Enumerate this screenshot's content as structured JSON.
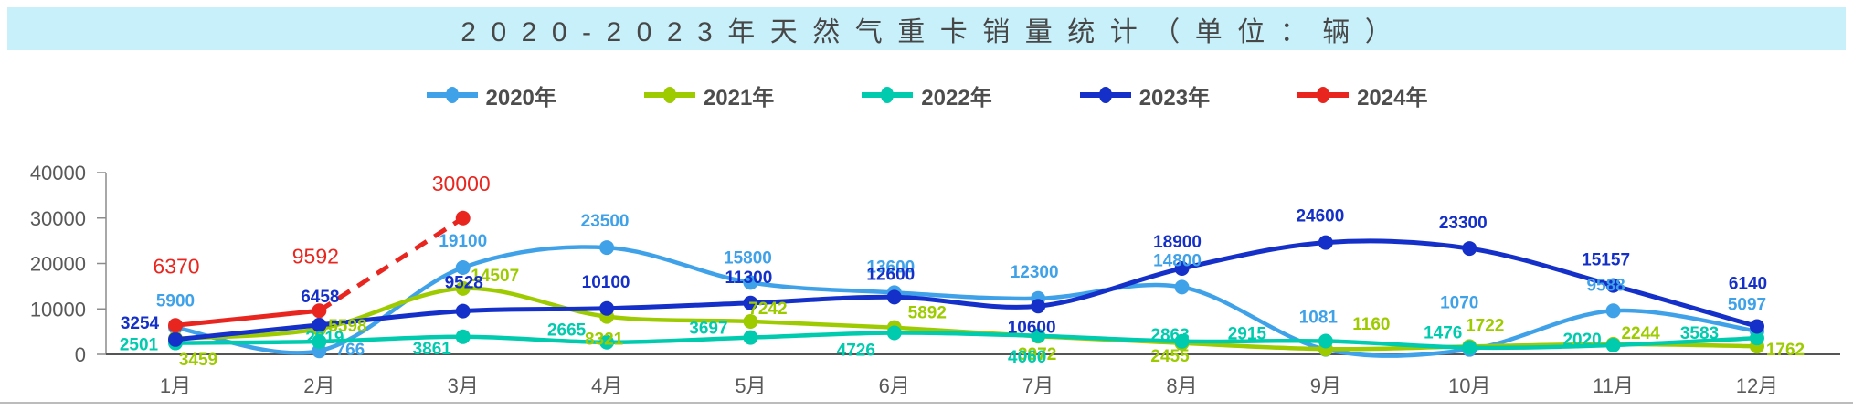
{
  "title": "2020-2023年天然气重卡销量统计（单位：辆）",
  "chart_data": {
    "type": "line",
    "smooth": true,
    "grid": false,
    "legend_position": "top",
    "categories": [
      "1月",
      "2月",
      "3月",
      "4月",
      "5月",
      "6月",
      "7月",
      "8月",
      "9月",
      "10月",
      "11月",
      "12月"
    ],
    "ylim": [
      0,
      40000
    ],
    "yticks": [
      0,
      10000,
      20000,
      30000,
      40000
    ],
    "series": [
      {
        "name": "2020年",
        "color": "#3fa2e9",
        "values": [
          5900,
          766,
          19100,
          23500,
          15800,
          13600,
          12300,
          14800,
          1081,
          1070,
          9588,
          5097
        ]
      },
      {
        "name": "2021年",
        "color": "#9dcb00",
        "values": [
          3459,
          5598,
          14507,
          8321,
          7242,
          5892,
          3972,
          2455,
          1160,
          1722,
          2244,
          1762
        ]
      },
      {
        "name": "2022年",
        "color": "#00cbae",
        "values": [
          2501,
          2819,
          3861,
          2665,
          3697,
          4726,
          4060,
          2863,
          2915,
          1476,
          2020,
          3583
        ]
      },
      {
        "name": "2023年",
        "color": "#1430c8",
        "values": [
          3254,
          6458,
          9528,
          10100,
          11300,
          12600,
          10600,
          18900,
          24600,
          23300,
          15157,
          6140
        ]
      },
      {
        "name": "2024年",
        "color": "#e8261f",
        "dashed_from_index": 1,
        "values": [
          6370,
          9592,
          30000,
          null,
          null,
          null,
          null,
          null,
          null,
          null,
          null,
          null
        ]
      }
    ]
  }
}
